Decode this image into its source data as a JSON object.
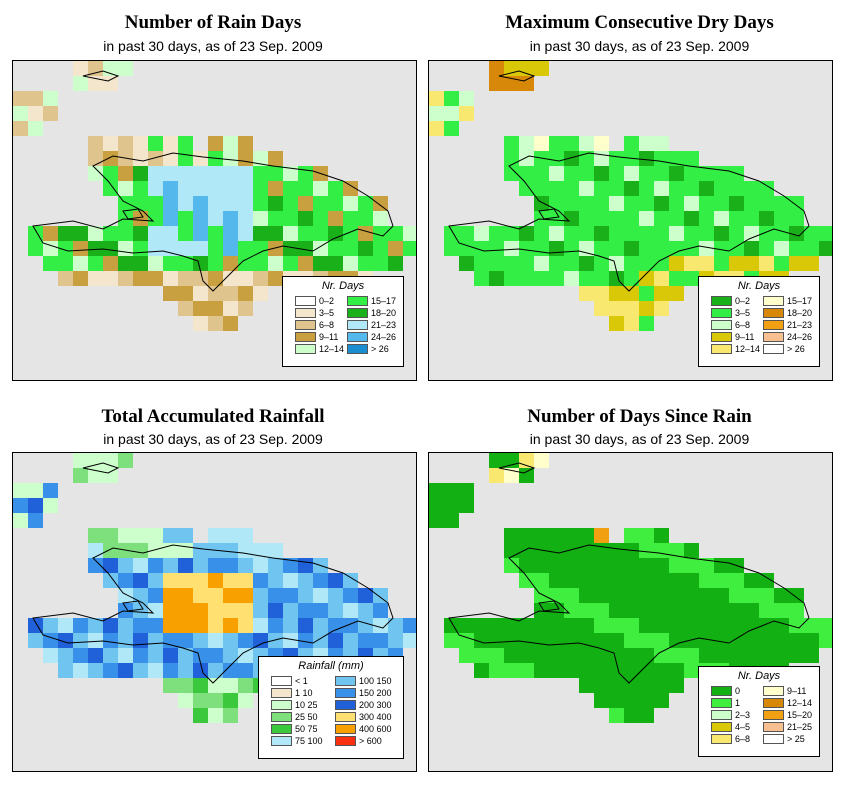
{
  "panels": [
    {
      "id": "rain-days",
      "title": "Number of Rain Days",
      "subtitle": "in past 30 days, as of  23 Sep. 2009",
      "legend": {
        "title": "Nr. Days",
        "items": [
          {
            "label": "0–2",
            "color": "#ffffff"
          },
          {
            "label": "3–5",
            "color": "#f3e6cc"
          },
          {
            "label": "6–8",
            "color": "#dfc48e"
          },
          {
            "label": "9–11",
            "color": "#c8a040"
          },
          {
            "label": "12–14",
            "color": "#ccffcc"
          },
          {
            "label": "15–17",
            "color": "#33ee44"
          },
          {
            "label": "18–20",
            "color": "#1ab01a"
          },
          {
            "label": "21–23",
            "color": "#b0e8f8"
          },
          {
            "label": "24–26",
            "color": "#55b8ec"
          },
          {
            "label": "> 26",
            "color": "#1a8ed0"
          }
        ]
      }
    },
    {
      "id": "dry-days",
      "title": "Maximum Consecutive Dry Days",
      "subtitle": "in past 30 days, as of  23 Sep. 2009",
      "legend": {
        "title": "Nr. Days",
        "items": [
          {
            "label": "0–2",
            "color": "#1ab01a"
          },
          {
            "label": "3–5",
            "color": "#33ee44"
          },
          {
            "label": "6–8",
            "color": "#ccffcc"
          },
          {
            "label": "9–11",
            "color": "#d8c808"
          },
          {
            "label": "12–14",
            "color": "#f8e870"
          },
          {
            "label": "15–17",
            "color": "#ffffcc"
          },
          {
            "label": "18–20",
            "color": "#d88808"
          },
          {
            "label": "21–23",
            "color": "#f0a010"
          },
          {
            "label": "24–26",
            "color": "#f8c090"
          },
          {
            "label": "> 26",
            "color": "#ffffff"
          }
        ]
      }
    },
    {
      "id": "total-rain",
      "title": "Total Accumulated Rainfall",
      "subtitle": "in past 30 days, as of  23 Sep. 2009",
      "legend": {
        "title": "Rainfall (mm)",
        "items": [
          {
            "label": "< 1",
            "color": "#ffffff"
          },
          {
            "label": "1    10",
            "color": "#f3e6cc"
          },
          {
            "label": "10    25",
            "color": "#ccffcc"
          },
          {
            "label": "25    50",
            "color": "#7de07d"
          },
          {
            "label": "50    75",
            "color": "#3cc83c"
          },
          {
            "label": "75  100",
            "color": "#b0e8f8"
          },
          {
            "label": "100  150",
            "color": "#70c4f0"
          },
          {
            "label": "150  200",
            "color": "#3890e8"
          },
          {
            "label": "200  300",
            "color": "#2060d8"
          },
          {
            "label": "300  400",
            "color": "#ffe070"
          },
          {
            "label": "400  600",
            "color": "#f8a000"
          },
          {
            "label": "> 600",
            "color": "#f83010"
          }
        ]
      }
    },
    {
      "id": "days-since-rain",
      "title": "Number of Days Since Rain",
      "subtitle": "in past 30 days, as of  23 Sep. 2009",
      "legend": {
        "title": "Nr. Days",
        "items": [
          {
            "label": "0",
            "color": "#12b012"
          },
          {
            "label": "1",
            "color": "#40ee40"
          },
          {
            "label": "2–3",
            "color": "#ccffcc"
          },
          {
            "label": "4–5",
            "color": "#d8c808"
          },
          {
            "label": "6–8",
            "color": "#f8e870"
          },
          {
            "label": "9–11",
            "color": "#ffffcc"
          },
          {
            "label": "12–14",
            "color": "#d88808"
          },
          {
            "label": "15–20",
            "color": "#f0a010"
          },
          {
            "label": "21–25",
            "color": "#f8c090"
          },
          {
            "label": "> 25",
            "color": "#ffffff"
          }
        ]
      }
    }
  ]
}
